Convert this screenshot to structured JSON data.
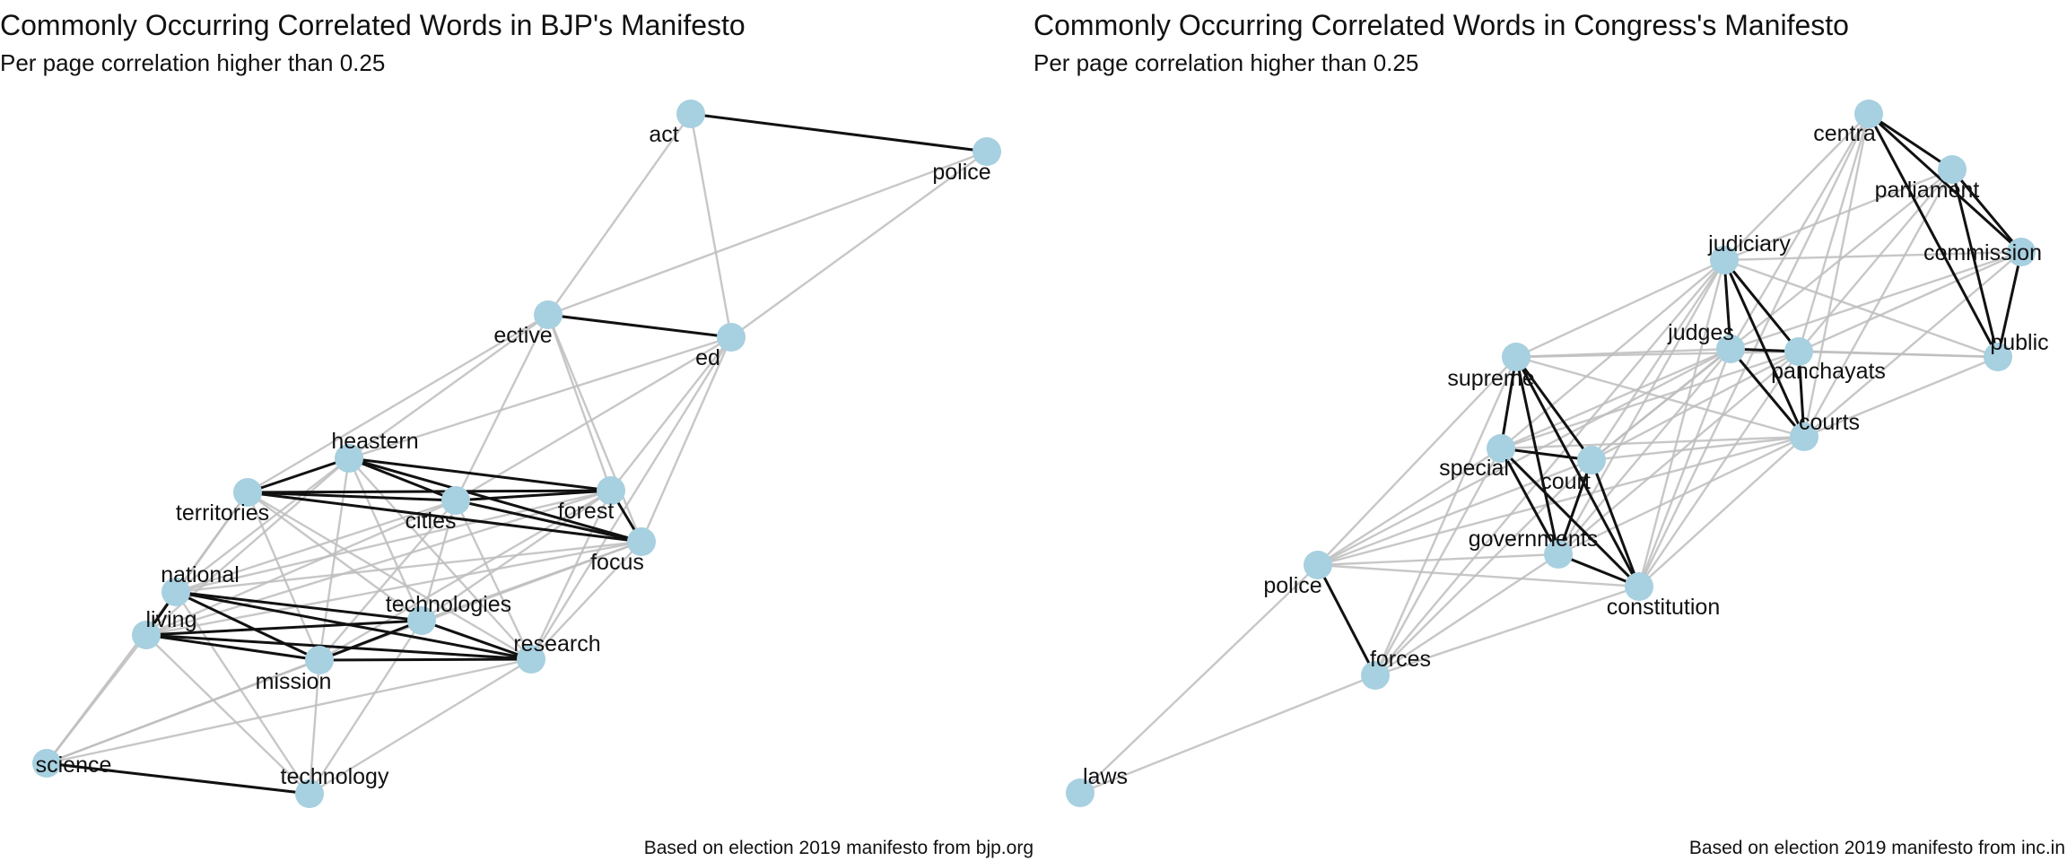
{
  "colors": {
    "node": "#a7d0e0",
    "strong_edge": "#111111",
    "weak_edge": "#bdbdbd",
    "text": "#111111",
    "background": "#ffffff"
  },
  "panels": [
    {
      "id": "bjp",
      "title": "Commonly Occurring Correlated Words in BJP's Manifesto",
      "subtitle": "Per page correlation higher than 0.25",
      "caption": "Based on election 2019 manifesto from bjp.org",
      "nodes": [
        {
          "id": "act",
          "label": "act"
        },
        {
          "id": "police",
          "label": "police"
        },
        {
          "id": "ective",
          "label": "ective"
        },
        {
          "id": "ed",
          "label": "ed"
        },
        {
          "id": "heastern",
          "label": "heastern"
        },
        {
          "id": "territories",
          "label": "territories"
        },
        {
          "id": "cities",
          "label": "cities"
        },
        {
          "id": "forest",
          "label": "forest"
        },
        {
          "id": "focus",
          "label": "focus"
        },
        {
          "id": "national",
          "label": "national"
        },
        {
          "id": "living",
          "label": "living"
        },
        {
          "id": "technologies",
          "label": "technologies"
        },
        {
          "id": "research",
          "label": "research"
        },
        {
          "id": "mission",
          "label": "mission"
        },
        {
          "id": "science",
          "label": "science"
        },
        {
          "id": "technology",
          "label": "technology"
        }
      ],
      "edges": [
        {
          "source": "act",
          "target": "police",
          "strength": "strong"
        },
        {
          "source": "ective",
          "target": "ed",
          "strength": "strong"
        },
        {
          "source": "science",
          "target": "technology",
          "strength": "strong"
        },
        {
          "source": "heastern",
          "target": "territories",
          "strength": "strong"
        },
        {
          "source": "heastern",
          "target": "cities",
          "strength": "strong"
        },
        {
          "source": "heastern",
          "target": "forest",
          "strength": "strong"
        },
        {
          "source": "heastern",
          "target": "focus",
          "strength": "strong"
        },
        {
          "source": "territories",
          "target": "cities",
          "strength": "strong"
        },
        {
          "source": "territories",
          "target": "forest",
          "strength": "strong"
        },
        {
          "source": "territories",
          "target": "focus",
          "strength": "strong"
        },
        {
          "source": "cities",
          "target": "forest",
          "strength": "strong"
        },
        {
          "source": "cities",
          "target": "focus",
          "strength": "strong"
        },
        {
          "source": "forest",
          "target": "focus",
          "strength": "strong"
        },
        {
          "source": "national",
          "target": "living",
          "strength": "strong"
        },
        {
          "source": "national",
          "target": "technologies",
          "strength": "strong"
        },
        {
          "source": "national",
          "target": "mission",
          "strength": "strong"
        },
        {
          "source": "national",
          "target": "research",
          "strength": "strong"
        },
        {
          "source": "living",
          "target": "technologies",
          "strength": "strong"
        },
        {
          "source": "living",
          "target": "mission",
          "strength": "strong"
        },
        {
          "source": "living",
          "target": "research",
          "strength": "strong"
        },
        {
          "source": "technologies",
          "target": "mission",
          "strength": "strong"
        },
        {
          "source": "technologies",
          "target": "research",
          "strength": "strong"
        },
        {
          "source": "mission",
          "target": "research",
          "strength": "strong"
        },
        {
          "source": "act",
          "target": "ective",
          "strength": "weak"
        },
        {
          "source": "act",
          "target": "ed",
          "strength": "weak"
        },
        {
          "source": "police",
          "target": "ective",
          "strength": "weak"
        },
        {
          "source": "police",
          "target": "ed",
          "strength": "weak"
        },
        {
          "source": "ective",
          "target": "heastern",
          "strength": "weak"
        },
        {
          "source": "ective",
          "target": "territories",
          "strength": "weak"
        },
        {
          "source": "ective",
          "target": "cities",
          "strength": "weak"
        },
        {
          "source": "ective",
          "target": "forest",
          "strength": "weak"
        },
        {
          "source": "ective",
          "target": "focus",
          "strength": "weak"
        },
        {
          "source": "ed",
          "target": "heastern",
          "strength": "weak"
        },
        {
          "source": "ed",
          "target": "forest",
          "strength": "weak"
        },
        {
          "source": "ed",
          "target": "focus",
          "strength": "weak"
        },
        {
          "source": "ed",
          "target": "cities",
          "strength": "weak"
        },
        {
          "source": "ed",
          "target": "research",
          "strength": "weak"
        },
        {
          "source": "heastern",
          "target": "national",
          "strength": "weak"
        },
        {
          "source": "heastern",
          "target": "living",
          "strength": "weak"
        },
        {
          "source": "heastern",
          "target": "mission",
          "strength": "weak"
        },
        {
          "source": "heastern",
          "target": "technologies",
          "strength": "weak"
        },
        {
          "source": "heastern",
          "target": "research",
          "strength": "weak"
        },
        {
          "source": "territories",
          "target": "national",
          "strength": "weak"
        },
        {
          "source": "territories",
          "target": "living",
          "strength": "weak"
        },
        {
          "source": "territories",
          "target": "technologies",
          "strength": "weak"
        },
        {
          "source": "territories",
          "target": "mission",
          "strength": "weak"
        },
        {
          "source": "territories",
          "target": "research",
          "strength": "weak"
        },
        {
          "source": "cities",
          "target": "national",
          "strength": "weak"
        },
        {
          "source": "cities",
          "target": "living",
          "strength": "weak"
        },
        {
          "source": "cities",
          "target": "technologies",
          "strength": "weak"
        },
        {
          "source": "cities",
          "target": "mission",
          "strength": "weak"
        },
        {
          "source": "cities",
          "target": "research",
          "strength": "weak"
        },
        {
          "source": "forest",
          "target": "national",
          "strength": "weak"
        },
        {
          "source": "forest",
          "target": "living",
          "strength": "weak"
        },
        {
          "source": "forest",
          "target": "technologies",
          "strength": "weak"
        },
        {
          "source": "forest",
          "target": "mission",
          "strength": "weak"
        },
        {
          "source": "forest",
          "target": "research",
          "strength": "weak"
        },
        {
          "source": "focus",
          "target": "living",
          "strength": "weak"
        },
        {
          "source": "focus",
          "target": "national",
          "strength": "weak"
        },
        {
          "source": "focus",
          "target": "technologies",
          "strength": "weak"
        },
        {
          "source": "focus",
          "target": "mission",
          "strength": "weak"
        },
        {
          "source": "focus",
          "target": "research",
          "strength": "weak"
        },
        {
          "source": "science",
          "target": "national",
          "strength": "weak"
        },
        {
          "source": "science",
          "target": "living",
          "strength": "weak"
        },
        {
          "source": "science",
          "target": "mission",
          "strength": "weak"
        },
        {
          "source": "science",
          "target": "research",
          "strength": "weak"
        },
        {
          "source": "science",
          "target": "technologies",
          "strength": "weak"
        },
        {
          "source": "technology",
          "target": "living",
          "strength": "weak"
        },
        {
          "source": "technology",
          "target": "mission",
          "strength": "weak"
        },
        {
          "source": "technology",
          "target": "technologies",
          "strength": "weak"
        },
        {
          "source": "technology",
          "target": "research",
          "strength": "weak"
        },
        {
          "source": "technology",
          "target": "national",
          "strength": "weak"
        }
      ]
    },
    {
      "id": "congress",
      "title": "Commonly Occurring Correlated Words in Congress's Manifesto",
      "subtitle": "Per page correlation higher than 0.25",
      "caption": "Based on election 2019 manifesto from inc.in",
      "nodes": [
        {
          "id": "centra",
          "label": "centra"
        },
        {
          "id": "parliament",
          "label": "parliament"
        },
        {
          "id": "commission",
          "label": "commission"
        },
        {
          "id": "public",
          "label": "public"
        },
        {
          "id": "judiciary",
          "label": "judiciary"
        },
        {
          "id": "judges",
          "label": "judges"
        },
        {
          "id": "panchayats",
          "label": "panchayats"
        },
        {
          "id": "courts",
          "label": "courts"
        },
        {
          "id": "supreme",
          "label": "supreme"
        },
        {
          "id": "special",
          "label": "special"
        },
        {
          "id": "court",
          "label": "court"
        },
        {
          "id": "governments",
          "label": "governments"
        },
        {
          "id": "constitution",
          "label": "constitution"
        },
        {
          "id": "police",
          "label": "police"
        },
        {
          "id": "forces",
          "label": "forces"
        },
        {
          "id": "laws",
          "label": "laws"
        }
      ],
      "edges": [
        {
          "source": "centra",
          "target": "parliament",
          "strength": "strong"
        },
        {
          "source": "centra",
          "target": "commission",
          "strength": "strong"
        },
        {
          "source": "centra",
          "target": "public",
          "strength": "strong"
        },
        {
          "source": "parliament",
          "target": "commission",
          "strength": "strong"
        },
        {
          "source": "parliament",
          "target": "public",
          "strength": "strong"
        },
        {
          "source": "commission",
          "target": "public",
          "strength": "strong"
        },
        {
          "source": "judiciary",
          "target": "judges",
          "strength": "strong"
        },
        {
          "source": "judiciary",
          "target": "panchayats",
          "strength": "strong"
        },
        {
          "source": "judiciary",
          "target": "courts",
          "strength": "strong"
        },
        {
          "source": "judges",
          "target": "panchayats",
          "strength": "strong"
        },
        {
          "source": "judges",
          "target": "courts",
          "strength": "strong"
        },
        {
          "source": "panchayats",
          "target": "courts",
          "strength": "strong"
        },
        {
          "source": "supreme",
          "target": "special",
          "strength": "strong"
        },
        {
          "source": "supreme",
          "target": "court",
          "strength": "strong"
        },
        {
          "source": "supreme",
          "target": "governments",
          "strength": "strong"
        },
        {
          "source": "supreme",
          "target": "constitution",
          "strength": "strong"
        },
        {
          "source": "special",
          "target": "court",
          "strength": "strong"
        },
        {
          "source": "special",
          "target": "governments",
          "strength": "strong"
        },
        {
          "source": "special",
          "target": "constitution",
          "strength": "strong"
        },
        {
          "source": "court",
          "target": "governments",
          "strength": "strong"
        },
        {
          "source": "court",
          "target": "constitution",
          "strength": "strong"
        },
        {
          "source": "governments",
          "target": "constitution",
          "strength": "strong"
        },
        {
          "source": "police",
          "target": "forces",
          "strength": "strong"
        },
        {
          "source": "centra",
          "target": "judiciary",
          "strength": "weak"
        },
        {
          "source": "centra",
          "target": "judges",
          "strength": "weak"
        },
        {
          "source": "centra",
          "target": "panchayats",
          "strength": "weak"
        },
        {
          "source": "centra",
          "target": "courts",
          "strength": "weak"
        },
        {
          "source": "centra",
          "target": "constitution",
          "strength": "weak"
        },
        {
          "source": "parliament",
          "target": "judiciary",
          "strength": "weak"
        },
        {
          "source": "parliament",
          "target": "panchayats",
          "strength": "weak"
        },
        {
          "source": "parliament",
          "target": "courts",
          "strength": "weak"
        },
        {
          "source": "parliament",
          "target": "court",
          "strength": "weak"
        },
        {
          "source": "commission",
          "target": "judiciary",
          "strength": "weak"
        },
        {
          "source": "commission",
          "target": "judges",
          "strength": "weak"
        },
        {
          "source": "commission",
          "target": "courts",
          "strength": "weak"
        },
        {
          "source": "commission",
          "target": "panchayats",
          "strength": "weak"
        },
        {
          "source": "public",
          "target": "judges",
          "strength": "weak"
        },
        {
          "source": "public",
          "target": "panchayats",
          "strength": "weak"
        },
        {
          "source": "public",
          "target": "courts",
          "strength": "weak"
        },
        {
          "source": "public",
          "target": "judiciary",
          "strength": "weak"
        },
        {
          "source": "judiciary",
          "target": "supreme",
          "strength": "weak"
        },
        {
          "source": "judiciary",
          "target": "special",
          "strength": "weak"
        },
        {
          "source": "judiciary",
          "target": "court",
          "strength": "weak"
        },
        {
          "source": "judiciary",
          "target": "governments",
          "strength": "weak"
        },
        {
          "source": "judiciary",
          "target": "constitution",
          "strength": "weak"
        },
        {
          "source": "judiciary",
          "target": "forces",
          "strength": "weak"
        },
        {
          "source": "judges",
          "target": "supreme",
          "strength": "weak"
        },
        {
          "source": "judges",
          "target": "special",
          "strength": "weak"
        },
        {
          "source": "judges",
          "target": "court",
          "strength": "weak"
        },
        {
          "source": "judges",
          "target": "governments",
          "strength": "weak"
        },
        {
          "source": "judges",
          "target": "constitution",
          "strength": "weak"
        },
        {
          "source": "judges",
          "target": "police",
          "strength": "weak"
        },
        {
          "source": "panchayats",
          "target": "supreme",
          "strength": "weak"
        },
        {
          "source": "panchayats",
          "target": "court",
          "strength": "weak"
        },
        {
          "source": "panchayats",
          "target": "governments",
          "strength": "weak"
        },
        {
          "source": "panchayats",
          "target": "constitution",
          "strength": "weak"
        },
        {
          "source": "panchayats",
          "target": "special",
          "strength": "weak"
        },
        {
          "source": "courts",
          "target": "supreme",
          "strength": "weak"
        },
        {
          "source": "courts",
          "target": "special",
          "strength": "weak"
        },
        {
          "source": "courts",
          "target": "court",
          "strength": "weak"
        },
        {
          "source": "courts",
          "target": "governments",
          "strength": "weak"
        },
        {
          "source": "courts",
          "target": "constitution",
          "strength": "weak"
        },
        {
          "source": "courts",
          "target": "police",
          "strength": "weak"
        },
        {
          "source": "supreme",
          "target": "police",
          "strength": "weak"
        },
        {
          "source": "supreme",
          "target": "forces",
          "strength": "weak"
        },
        {
          "source": "special",
          "target": "police",
          "strength": "weak"
        },
        {
          "source": "special",
          "target": "forces",
          "strength": "weak"
        },
        {
          "source": "court",
          "target": "police",
          "strength": "weak"
        },
        {
          "source": "court",
          "target": "forces",
          "strength": "weak"
        },
        {
          "source": "governments",
          "target": "police",
          "strength": "weak"
        },
        {
          "source": "governments",
          "target": "forces",
          "strength": "weak"
        },
        {
          "source": "constitution",
          "target": "police",
          "strength": "weak"
        },
        {
          "source": "constitution",
          "target": "forces",
          "strength": "weak"
        },
        {
          "source": "police",
          "target": "laws",
          "strength": "weak"
        },
        {
          "source": "forces",
          "target": "laws",
          "strength": "weak"
        }
      ]
    }
  ]
}
